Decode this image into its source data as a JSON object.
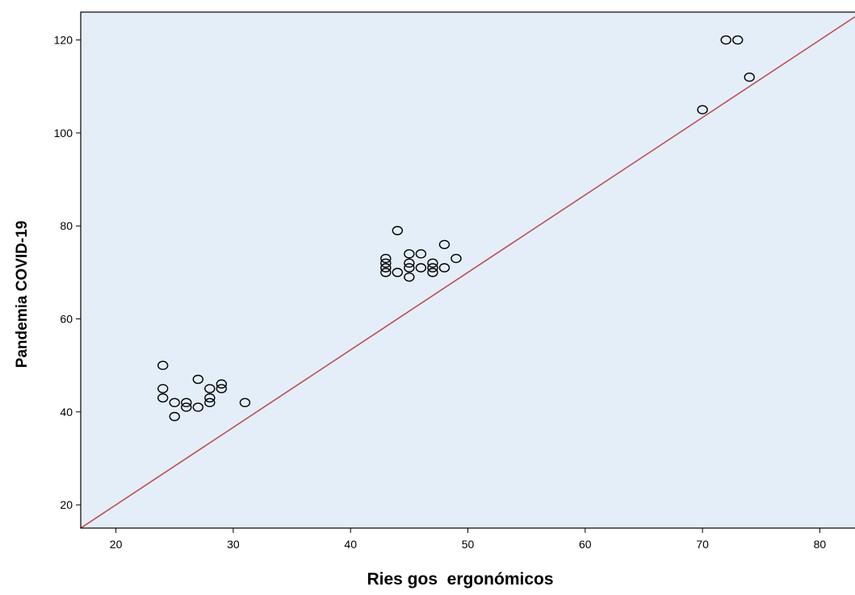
{
  "chart_data": {
    "type": "scatter",
    "title": "",
    "xlabel": "Ries gos  ergonómicos",
    "ylabel": "Pandemia COVID-19",
    "xlim": [
      17,
      83
    ],
    "ylim": [
      15,
      126
    ],
    "xticks": [
      20,
      30,
      40,
      50,
      60,
      70,
      80
    ],
    "yticks": [
      20,
      40,
      60,
      80,
      100,
      120
    ],
    "grid": false,
    "legend": "none",
    "plot_background": "#e4eef9",
    "marker_style": "open-circle",
    "marker_color": "#000000",
    "line_color": "#c0504d",
    "reference_line": {
      "type": "linear",
      "points": [
        [
          17,
          15
        ],
        [
          83,
          125
        ]
      ]
    },
    "points": [
      {
        "x": 24,
        "y": 50
      },
      {
        "x": 24,
        "y": 45
      },
      {
        "x": 24,
        "y": 43
      },
      {
        "x": 25,
        "y": 42
      },
      {
        "x": 25,
        "y": 39
      },
      {
        "x": 26,
        "y": 42
      },
      {
        "x": 26,
        "y": 41
      },
      {
        "x": 27,
        "y": 47
      },
      {
        "x": 27,
        "y": 41
      },
      {
        "x": 28,
        "y": 45
      },
      {
        "x": 28,
        "y": 43
      },
      {
        "x": 28,
        "y": 42
      },
      {
        "x": 29,
        "y": 46
      },
      {
        "x": 29,
        "y": 45
      },
      {
        "x": 31,
        "y": 42
      },
      {
        "x": 43,
        "y": 73
      },
      {
        "x": 43,
        "y": 72
      },
      {
        "x": 43,
        "y": 71
      },
      {
        "x": 43,
        "y": 70
      },
      {
        "x": 44,
        "y": 79
      },
      {
        "x": 44,
        "y": 70
      },
      {
        "x": 45,
        "y": 74
      },
      {
        "x": 45,
        "y": 72
      },
      {
        "x": 45,
        "y": 71
      },
      {
        "x": 45,
        "y": 69
      },
      {
        "x": 46,
        "y": 74
      },
      {
        "x": 46,
        "y": 71
      },
      {
        "x": 47,
        "y": 72
      },
      {
        "x": 47,
        "y": 71
      },
      {
        "x": 47,
        "y": 70
      },
      {
        "x": 48,
        "y": 76
      },
      {
        "x": 48,
        "y": 71
      },
      {
        "x": 49,
        "y": 73
      },
      {
        "x": 70,
        "y": 105
      },
      {
        "x": 72,
        "y": 120
      },
      {
        "x": 73,
        "y": 120
      },
      {
        "x": 74,
        "y": 112
      }
    ]
  }
}
